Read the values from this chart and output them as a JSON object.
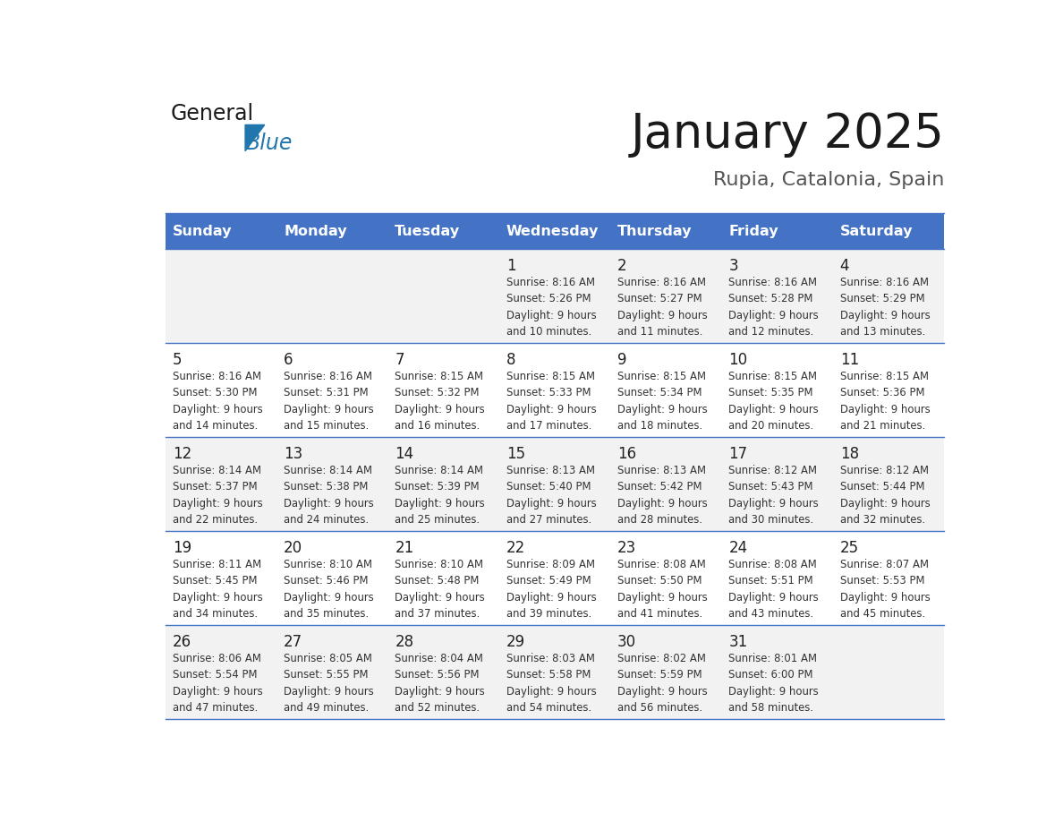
{
  "title": "January 2025",
  "subtitle": "Rupia, Catalonia, Spain",
  "header_bg": "#4472C4",
  "header_text": "#FFFFFF",
  "row_bg_light": "#F2F2F2",
  "row_bg_white": "#FFFFFF",
  "line_color": "#4472C4",
  "text_color": "#333333",
  "days_of_week": [
    "Sunday",
    "Monday",
    "Tuesday",
    "Wednesday",
    "Thursday",
    "Friday",
    "Saturday"
  ],
  "weeks": [
    [
      {
        "day": "",
        "sunrise": "",
        "sunset": "",
        "daylight_line1": "",
        "daylight_line2": ""
      },
      {
        "day": "",
        "sunrise": "",
        "sunset": "",
        "daylight_line1": "",
        "daylight_line2": ""
      },
      {
        "day": "",
        "sunrise": "",
        "sunset": "",
        "daylight_line1": "",
        "daylight_line2": ""
      },
      {
        "day": "1",
        "sunrise": "8:16 AM",
        "sunset": "5:26 PM",
        "daylight_line1": "9 hours",
        "daylight_line2": "and 10 minutes."
      },
      {
        "day": "2",
        "sunrise": "8:16 AM",
        "sunset": "5:27 PM",
        "daylight_line1": "9 hours",
        "daylight_line2": "and 11 minutes."
      },
      {
        "day": "3",
        "sunrise": "8:16 AM",
        "sunset": "5:28 PM",
        "daylight_line1": "9 hours",
        "daylight_line2": "and 12 minutes."
      },
      {
        "day": "4",
        "sunrise": "8:16 AM",
        "sunset": "5:29 PM",
        "daylight_line1": "9 hours",
        "daylight_line2": "and 13 minutes."
      }
    ],
    [
      {
        "day": "5",
        "sunrise": "8:16 AM",
        "sunset": "5:30 PM",
        "daylight_line1": "9 hours",
        "daylight_line2": "and 14 minutes."
      },
      {
        "day": "6",
        "sunrise": "8:16 AM",
        "sunset": "5:31 PM",
        "daylight_line1": "9 hours",
        "daylight_line2": "and 15 minutes."
      },
      {
        "day": "7",
        "sunrise": "8:15 AM",
        "sunset": "5:32 PM",
        "daylight_line1": "9 hours",
        "daylight_line2": "and 16 minutes."
      },
      {
        "day": "8",
        "sunrise": "8:15 AM",
        "sunset": "5:33 PM",
        "daylight_line1": "9 hours",
        "daylight_line2": "and 17 minutes."
      },
      {
        "day": "9",
        "sunrise": "8:15 AM",
        "sunset": "5:34 PM",
        "daylight_line1": "9 hours",
        "daylight_line2": "and 18 minutes."
      },
      {
        "day": "10",
        "sunrise": "8:15 AM",
        "sunset": "5:35 PM",
        "daylight_line1": "9 hours",
        "daylight_line2": "and 20 minutes."
      },
      {
        "day": "11",
        "sunrise": "8:15 AM",
        "sunset": "5:36 PM",
        "daylight_line1": "9 hours",
        "daylight_line2": "and 21 minutes."
      }
    ],
    [
      {
        "day": "12",
        "sunrise": "8:14 AM",
        "sunset": "5:37 PM",
        "daylight_line1": "9 hours",
        "daylight_line2": "and 22 minutes."
      },
      {
        "day": "13",
        "sunrise": "8:14 AM",
        "sunset": "5:38 PM",
        "daylight_line1": "9 hours",
        "daylight_line2": "and 24 minutes."
      },
      {
        "day": "14",
        "sunrise": "8:14 AM",
        "sunset": "5:39 PM",
        "daylight_line1": "9 hours",
        "daylight_line2": "and 25 minutes."
      },
      {
        "day": "15",
        "sunrise": "8:13 AM",
        "sunset": "5:40 PM",
        "daylight_line1": "9 hours",
        "daylight_line2": "and 27 minutes."
      },
      {
        "day": "16",
        "sunrise": "8:13 AM",
        "sunset": "5:42 PM",
        "daylight_line1": "9 hours",
        "daylight_line2": "and 28 minutes."
      },
      {
        "day": "17",
        "sunrise": "8:12 AM",
        "sunset": "5:43 PM",
        "daylight_line1": "9 hours",
        "daylight_line2": "and 30 minutes."
      },
      {
        "day": "18",
        "sunrise": "8:12 AM",
        "sunset": "5:44 PM",
        "daylight_line1": "9 hours",
        "daylight_line2": "and 32 minutes."
      }
    ],
    [
      {
        "day": "19",
        "sunrise": "8:11 AM",
        "sunset": "5:45 PM",
        "daylight_line1": "9 hours",
        "daylight_line2": "and 34 minutes."
      },
      {
        "day": "20",
        "sunrise": "8:10 AM",
        "sunset": "5:46 PM",
        "daylight_line1": "9 hours",
        "daylight_line2": "and 35 minutes."
      },
      {
        "day": "21",
        "sunrise": "8:10 AM",
        "sunset": "5:48 PM",
        "daylight_line1": "9 hours",
        "daylight_line2": "and 37 minutes."
      },
      {
        "day": "22",
        "sunrise": "8:09 AM",
        "sunset": "5:49 PM",
        "daylight_line1": "9 hours",
        "daylight_line2": "and 39 minutes."
      },
      {
        "day": "23",
        "sunrise": "8:08 AM",
        "sunset": "5:50 PM",
        "daylight_line1": "9 hours",
        "daylight_line2": "and 41 minutes."
      },
      {
        "day": "24",
        "sunrise": "8:08 AM",
        "sunset": "5:51 PM",
        "daylight_line1": "9 hours",
        "daylight_line2": "and 43 minutes."
      },
      {
        "day": "25",
        "sunrise": "8:07 AM",
        "sunset": "5:53 PM",
        "daylight_line1": "9 hours",
        "daylight_line2": "and 45 minutes."
      }
    ],
    [
      {
        "day": "26",
        "sunrise": "8:06 AM",
        "sunset": "5:54 PM",
        "daylight_line1": "9 hours",
        "daylight_line2": "and 47 minutes."
      },
      {
        "day": "27",
        "sunrise": "8:05 AM",
        "sunset": "5:55 PM",
        "daylight_line1": "9 hours",
        "daylight_line2": "and 49 minutes."
      },
      {
        "day": "28",
        "sunrise": "8:04 AM",
        "sunset": "5:56 PM",
        "daylight_line1": "9 hours",
        "daylight_line2": "and 52 minutes."
      },
      {
        "day": "29",
        "sunrise": "8:03 AM",
        "sunset": "5:58 PM",
        "daylight_line1": "9 hours",
        "daylight_line2": "and 54 minutes."
      },
      {
        "day": "30",
        "sunrise": "8:02 AM",
        "sunset": "5:59 PM",
        "daylight_line1": "9 hours",
        "daylight_line2": "and 56 minutes."
      },
      {
        "day": "31",
        "sunrise": "8:01 AM",
        "sunset": "6:00 PM",
        "daylight_line1": "9 hours",
        "daylight_line2": "and 58 minutes."
      },
      {
        "day": "",
        "sunrise": "",
        "sunset": "",
        "daylight_line1": "",
        "daylight_line2": ""
      }
    ]
  ]
}
